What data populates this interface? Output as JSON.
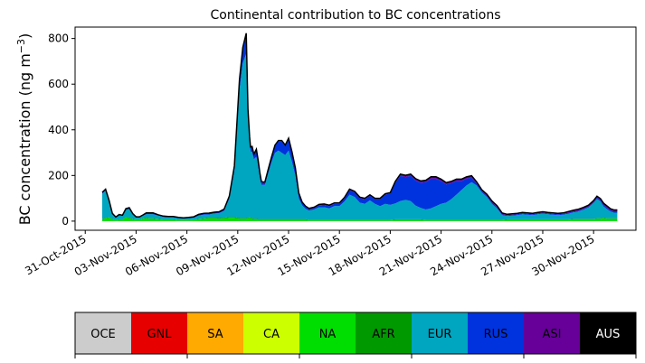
{
  "chart_data": {
    "type": "area",
    "title": "Continental contribution to BC concentrations",
    "xlabel": "",
    "ylabel": "BC concentration (ng m",
    "ylabel_sup": "−3",
    "ylabel_close": ")",
    "x_tick_labels": [
      "31-Oct-2015",
      "03-Nov-2015",
      "06-Nov-2015",
      "09-Nov-2015",
      "12-Nov-2015",
      "15-Nov-2015",
      "18-Nov-2015",
      "21-Nov-2015",
      "24-Nov-2015",
      "27-Nov-2015",
      "30-Nov-2015"
    ],
    "x_tick_values": [
      0,
      3,
      6,
      9,
      12,
      15,
      18,
      21,
      24,
      27,
      30
    ],
    "xlim": [
      -0.6,
      32.5
    ],
    "ylim": [
      -40,
      850
    ],
    "y_ticks": [
      0,
      200,
      400,
      600,
      800
    ],
    "stacked": true,
    "legend_position": "bottom-colorbar",
    "x": [
      1.0,
      1.2,
      1.4,
      1.6,
      1.8,
      2.0,
      2.2,
      2.4,
      2.6,
      2.8,
      3.0,
      3.2,
      3.4,
      3.6,
      3.8,
      4.0,
      4.3,
      4.6,
      4.9,
      5.2,
      5.5,
      5.8,
      6.1,
      6.4,
      6.7,
      7.0,
      7.3,
      7.6,
      7.9,
      8.2,
      8.5,
      8.8,
      9.1,
      9.3,
      9.5,
      9.6,
      9.7,
      9.75,
      9.85,
      9.95,
      10.1,
      10.2,
      10.3,
      10.4,
      10.6,
      10.8,
      11.0,
      11.2,
      11.4,
      11.6,
      11.8,
      12.0,
      12.2,
      12.4,
      12.6,
      12.8,
      13.0,
      13.2,
      13.5,
      13.8,
      14.1,
      14.4,
      14.7,
      15.0,
      15.3,
      15.6,
      15.9,
      16.2,
      16.5,
      16.8,
      17.1,
      17.4,
      17.7,
      18.0,
      18.3,
      18.6,
      18.9,
      19.2,
      19.5,
      19.8,
      20.1,
      20.4,
      20.7,
      21.0,
      21.3,
      21.6,
      21.9,
      22.2,
      22.5,
      22.8,
      23.1,
      23.4,
      23.7,
      24.0,
      24.3,
      24.6,
      24.9,
      25.2,
      25.5,
      25.8,
      26.1,
      26.4,
      26.7,
      27.0,
      27.3,
      27.6,
      27.9,
      28.2,
      28.5,
      28.8,
      29.1,
      29.4,
      29.7,
      30.0,
      30.2,
      30.4,
      30.5,
      30.6,
      30.8,
      31.0,
      31.2,
      31.4
    ],
    "series": [
      {
        "name": "OCE",
        "color": "#cccccc",
        "values": [
          0,
          0,
          0,
          0,
          0,
          0,
          0,
          0,
          0,
          0,
          0,
          0,
          0,
          0,
          0,
          0,
          0,
          0,
          0,
          0,
          0,
          0,
          0,
          0,
          0,
          0,
          0,
          0,
          0,
          0,
          0,
          0,
          0,
          0,
          0,
          0,
          0,
          0,
          0,
          0,
          0,
          0,
          0,
          0,
          0,
          0,
          0,
          0,
          0,
          0,
          0,
          0,
          0,
          0,
          0,
          0,
          0,
          0,
          0,
          0,
          0,
          0,
          0,
          0,
          0,
          0,
          0,
          0,
          0,
          0,
          0,
          0,
          0,
          0,
          0,
          0,
          0,
          0,
          0,
          0,
          0,
          0,
          0,
          0,
          0,
          0,
          0,
          0,
          0,
          0,
          0,
          0,
          0,
          0,
          0,
          0,
          0,
          0,
          0,
          0,
          0,
          0,
          0,
          0,
          0,
          0,
          0,
          0,
          0,
          0,
          0,
          0,
          0,
          0,
          0,
          0,
          0,
          0,
          0,
          0,
          0,
          0
        ]
      },
      {
        "name": "GNL",
        "color": "#e60000",
        "values": [
          0,
          0,
          0,
          0,
          0,
          0,
          0,
          0,
          0,
          0,
          0,
          0,
          0,
          0,
          0,
          0,
          0,
          0,
          0,
          0,
          0,
          0,
          0,
          0,
          0,
          0,
          0,
          0,
          0,
          0,
          0,
          0,
          0,
          0,
          0,
          0,
          0,
          0,
          0,
          0,
          0,
          0,
          0,
          0,
          0,
          0,
          0,
          0,
          0,
          0,
          0,
          0,
          0,
          0,
          0,
          0,
          0,
          0,
          0,
          0,
          0,
          0,
          0,
          0,
          0,
          0,
          0,
          0,
          0,
          0,
          0,
          0,
          0,
          0,
          0,
          0,
          0,
          0,
          0,
          0,
          0,
          0,
          0,
          0,
          0,
          0,
          0,
          0,
          0,
          0,
          0,
          0,
          0,
          0,
          0,
          0,
          0,
          0,
          0,
          0,
          0,
          0,
          0,
          0,
          0,
          0,
          0,
          0,
          0,
          0,
          0,
          0,
          0,
          0,
          0,
          0,
          0,
          0,
          0,
          0,
          0,
          0
        ]
      },
      {
        "name": "SA",
        "color": "#ffaa00",
        "values": [
          0,
          0,
          0,
          0,
          0,
          0,
          0,
          0,
          0,
          0,
          0,
          0,
          0,
          0,
          0,
          0,
          0,
          0,
          0,
          0,
          0,
          0,
          0,
          0,
          0,
          0,
          0,
          0,
          0,
          0,
          0,
          0,
          0,
          0,
          0,
          0,
          0,
          0,
          0,
          0,
          0,
          0,
          0,
          0,
          0,
          0,
          0,
          0,
          0,
          0,
          0,
          0,
          0,
          0,
          0,
          0,
          0,
          0,
          0,
          0,
          0,
          0,
          0,
          0,
          0,
          0,
          0,
          0,
          0,
          0,
          0,
          0,
          0,
          0,
          0,
          0,
          0,
          0,
          0,
          0,
          0,
          0,
          0,
          0,
          0,
          0,
          0,
          0,
          0,
          0,
          0,
          0,
          0,
          0,
          0,
          0,
          0,
          0,
          0,
          0,
          0,
          0,
          0,
          0,
          0,
          0,
          0,
          0,
          0,
          0,
          0,
          0,
          0,
          0,
          0,
          0,
          0,
          0,
          0,
          0,
          0,
          0
        ]
      },
      {
        "name": "CA",
        "color": "#ccff00",
        "values": [
          0,
          0,
          0,
          0,
          0,
          0,
          0,
          0,
          0,
          0,
          0,
          0,
          0,
          0,
          0,
          0,
          0,
          0,
          0,
          0,
          0,
          0,
          0,
          0,
          0,
          0,
          0,
          0,
          0,
          0,
          0,
          0,
          0,
          0,
          0,
          0,
          0,
          0,
          0,
          0,
          0,
          0,
          0,
          0,
          0,
          0,
          0,
          0,
          0,
          0,
          0,
          0,
          0,
          0,
          0,
          0,
          0,
          0,
          0,
          0,
          0,
          0,
          0,
          0,
          0,
          0,
          0,
          0,
          0,
          0,
          0,
          0,
          0,
          0,
          0,
          0,
          0,
          0,
          0,
          0,
          0,
          0,
          0,
          0,
          0,
          0,
          0,
          0,
          0,
          0,
          0,
          0,
          0,
          0,
          0,
          0,
          0,
          0,
          0,
          0,
          0,
          0,
          0,
          0,
          0,
          0,
          0,
          0,
          0,
          0,
          0,
          0,
          0,
          0,
          0,
          0,
          0,
          0,
          0,
          0,
          0,
          0
        ]
      },
      {
        "name": "NA",
        "color": "#00dd00",
        "values": [
          8,
          12,
          14,
          8,
          4,
          6,
          6,
          16,
          12,
          8,
          6,
          6,
          10,
          12,
          10,
          10,
          8,
          6,
          6,
          6,
          4,
          4,
          4,
          6,
          8,
          10,
          12,
          12,
          10,
          12,
          14,
          14,
          10,
          10,
          10,
          12,
          14,
          12,
          10,
          8,
          8,
          6,
          6,
          6,
          6,
          6,
          6,
          6,
          6,
          6,
          6,
          6,
          6,
          6,
          6,
          6,
          6,
          4,
          4,
          4,
          4,
          4,
          4,
          4,
          4,
          4,
          4,
          4,
          4,
          4,
          4,
          4,
          4,
          4,
          6,
          6,
          6,
          6,
          6,
          6,
          4,
          4,
          4,
          4,
          4,
          4,
          4,
          4,
          4,
          4,
          4,
          4,
          4,
          4,
          4,
          4,
          6,
          6,
          6,
          6,
          6,
          6,
          6,
          6,
          6,
          6,
          6,
          6,
          6,
          8,
          8,
          8,
          8,
          8,
          10,
          10,
          12,
          12,
          10,
          10,
          10,
          10
        ]
      },
      {
        "name": "AFR",
        "color": "#009900",
        "values": [
          2,
          2,
          2,
          2,
          1,
          2,
          2,
          3,
          3,
          2,
          2,
          2,
          2,
          2,
          2,
          2,
          2,
          2,
          2,
          2,
          1,
          1,
          1,
          1,
          2,
          2,
          3,
          3,
          3,
          3,
          4,
          4,
          3,
          3,
          3,
          3,
          3,
          3,
          3,
          3,
          3,
          3,
          3,
          3,
          3,
          3,
          3,
          3,
          3,
          3,
          3,
          3,
          3,
          3,
          3,
          3,
          3,
          2,
          2,
          2,
          2,
          2,
          2,
          2,
          2,
          2,
          2,
          2,
          2,
          2,
          2,
          2,
          2,
          2,
          2,
          2,
          2,
          2,
          2,
          2,
          2,
          2,
          2,
          2,
          2,
          2,
          2,
          2,
          2,
          2,
          2,
          2,
          2,
          2,
          2,
          2,
          2,
          2,
          2,
          2,
          2,
          2,
          2,
          2,
          2,
          2,
          2,
          2,
          2,
          2,
          2,
          2,
          2,
          2,
          2,
          2,
          2,
          2,
          2,
          2,
          2,
          2
        ]
      },
      {
        "name": "EUR",
        "color": "#00a5bf",
        "values": [
          110,
          120,
          70,
          20,
          10,
          18,
          15,
          30,
          38,
          20,
          8,
          8,
          12,
          16,
          18,
          18,
          14,
          10,
          8,
          8,
          8,
          6,
          8,
          8,
          14,
          16,
          14,
          18,
          22,
          30,
          80,
          200,
          560,
          680,
          720,
          440,
          330,
          290,
          290,
          260,
          270,
          230,
          180,
          150,
          150,
          200,
          250,
          290,
          300,
          290,
          280,
          300,
          250,
          190,
          90,
          60,
          45,
          40,
          45,
          55,
          55,
          50,
          60,
          60,
          80,
          110,
          100,
          75,
          70,
          85,
          70,
          60,
          70,
          65,
          70,
          80,
          85,
          80,
          60,
          50,
          45,
          50,
          60,
          70,
          75,
          90,
          110,
          130,
          150,
          165,
          150,
          120,
          100,
          70,
          50,
          20,
          14,
          16,
          18,
          22,
          20,
          18,
          22,
          25,
          22,
          20,
          18,
          20,
          24,
          28,
          32,
          40,
          50,
          70,
          85,
          75,
          60,
          50,
          40,
          30,
          25,
          25
        ]
      },
      {
        "name": "RUS",
        "color": "#0033dd",
        "values": [
          4,
          4,
          4,
          2,
          2,
          2,
          2,
          4,
          4,
          2,
          2,
          2,
          2,
          4,
          4,
          4,
          2,
          2,
          2,
          2,
          2,
          2,
          2,
          2,
          4,
          4,
          4,
          4,
          4,
          6,
          10,
          20,
          40,
          60,
          80,
          30,
          20,
          16,
          20,
          18,
          30,
          26,
          20,
          10,
          8,
          14,
          20,
          30,
          40,
          50,
          40,
          50,
          40,
          30,
          20,
          10,
          8,
          6,
          6,
          8,
          10,
          10,
          10,
          10,
          14,
          20,
          20,
          20,
          20,
          20,
          20,
          30,
          40,
          50,
          90,
          110,
          100,
          110,
          110,
          110,
          120,
          130,
          120,
          100,
          80,
          70,
          60,
          40,
          30,
          20,
          10,
          6,
          6,
          6,
          6,
          4,
          4,
          4,
          4,
          4,
          4,
          4,
          4,
          4,
          4,
          4,
          4,
          4,
          4,
          4,
          4,
          4,
          4,
          4,
          6,
          6,
          6,
          6,
          6,
          6,
          6,
          6
        ]
      },
      {
        "name": "ASI",
        "color": "#660099",
        "values": [
          2,
          2,
          2,
          2,
          1,
          1,
          1,
          2,
          2,
          1,
          1,
          1,
          1,
          2,
          2,
          2,
          2,
          2,
          2,
          2,
          1,
          1,
          1,
          2,
          2,
          2,
          2,
          2,
          2,
          2,
          2,
          4,
          6,
          8,
          10,
          6,
          4,
          4,
          4,
          4,
          4,
          4,
          4,
          4,
          4,
          4,
          4,
          4,
          4,
          4,
          4,
          4,
          4,
          4,
          4,
          4,
          4,
          4,
          4,
          4,
          4,
          4,
          4,
          4,
          4,
          4,
          4,
          4,
          4,
          4,
          4,
          4,
          4,
          4,
          6,
          8,
          8,
          8,
          8,
          8,
          8,
          8,
          8,
          8,
          8,
          8,
          8,
          8,
          8,
          8,
          6,
          6,
          6,
          6,
          6,
          6,
          4,
          4,
          4,
          4,
          4,
          4,
          4,
          4,
          4,
          4,
          4,
          4,
          6,
          6,
          6,
          6,
          6,
          6,
          6,
          6,
          8,
          8,
          8,
          6,
          6,
          6
        ]
      },
      {
        "name": "AUS",
        "color": "#000000",
        "values": [
          0,
          0,
          0,
          0,
          0,
          0,
          0,
          0,
          0,
          0,
          0,
          0,
          0,
          0,
          0,
          0,
          0,
          0,
          0,
          0,
          0,
          0,
          0,
          0,
          0,
          0,
          0,
          0,
          0,
          0,
          0,
          0,
          0,
          0,
          0,
          0,
          0,
          0,
          0,
          0,
          0,
          0,
          0,
          0,
          0,
          0,
          0,
          0,
          0,
          0,
          0,
          0,
          0,
          0,
          0,
          0,
          0,
          0,
          0,
          0,
          0,
          0,
          0,
          0,
          0,
          0,
          0,
          0,
          0,
          0,
          0,
          0,
          0,
          0,
          0,
          0,
          0,
          0,
          0,
          0,
          0,
          0,
          0,
          0,
          0,
          0,
          0,
          0,
          0,
          0,
          0,
          0,
          0,
          0,
          0,
          0,
          0,
          0,
          0,
          0,
          0,
          0,
          0,
          0,
          0,
          0,
          0,
          0,
          0,
          0,
          0,
          0,
          0,
          0,
          0,
          0,
          0,
          0,
          0,
          0,
          0,
          0
        ]
      }
    ]
  }
}
